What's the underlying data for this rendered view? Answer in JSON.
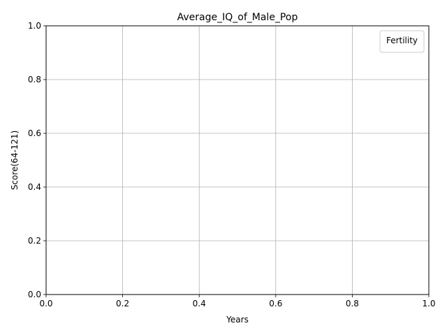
{
  "chart_data": {
    "type": "line",
    "title": "Average_IQ_of_Male_Pop",
    "xlabel": "Years",
    "ylabel": "Score(64-121)",
    "xlim": [
      0.0,
      1.0
    ],
    "ylim": [
      0.0,
      1.0
    ],
    "xticks": [
      "0.0",
      "0.2",
      "0.4",
      "0.6",
      "0.8",
      "1.0"
    ],
    "yticks": [
      "0.0",
      "0.2",
      "0.4",
      "0.6",
      "0.8",
      "1.0"
    ],
    "grid": true,
    "legend": {
      "title": "Fertility",
      "location": "upper right",
      "entries": []
    },
    "series": []
  }
}
